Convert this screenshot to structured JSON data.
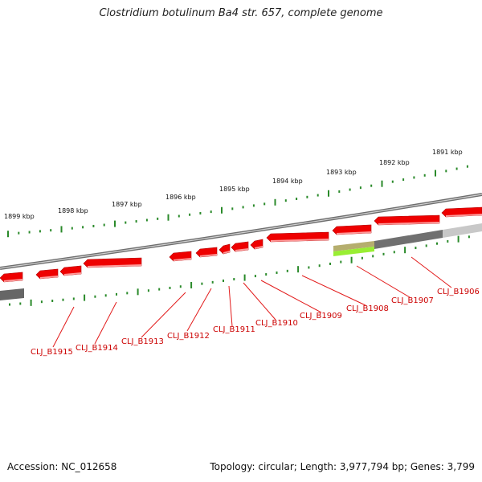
{
  "title": "Clostridium botulinum Ba4 str. 657, complete genome",
  "footer": {
    "accession": "Accession: NC_012658",
    "summary": "Topology: circular; Length: 3,977,794 bp; Genes: 3,799"
  },
  "scale_labels": [
    "1899 kbp",
    "1898 kbp",
    "1897 kbp",
    "1896 kbp",
    "1895 kbp",
    "1894 kbp",
    "1893 kbp",
    "1892 kbp",
    "1891 kbp"
  ],
  "gene_labels": [
    "CLJ_B1915",
    "CLJ_B1914",
    "CLJ_B1913",
    "CLJ_B1912",
    "CLJ_B1911",
    "CLJ_B1910",
    "CLJ_B1909",
    "CLJ_B1908",
    "CLJ_B1907",
    "CLJ_B1906"
  ],
  "colors": {
    "gene": "#ee0000",
    "backbone": "#888888",
    "ticks": "#2a8a2a",
    "rna": "#99ee33",
    "label": "#cc0000"
  }
}
